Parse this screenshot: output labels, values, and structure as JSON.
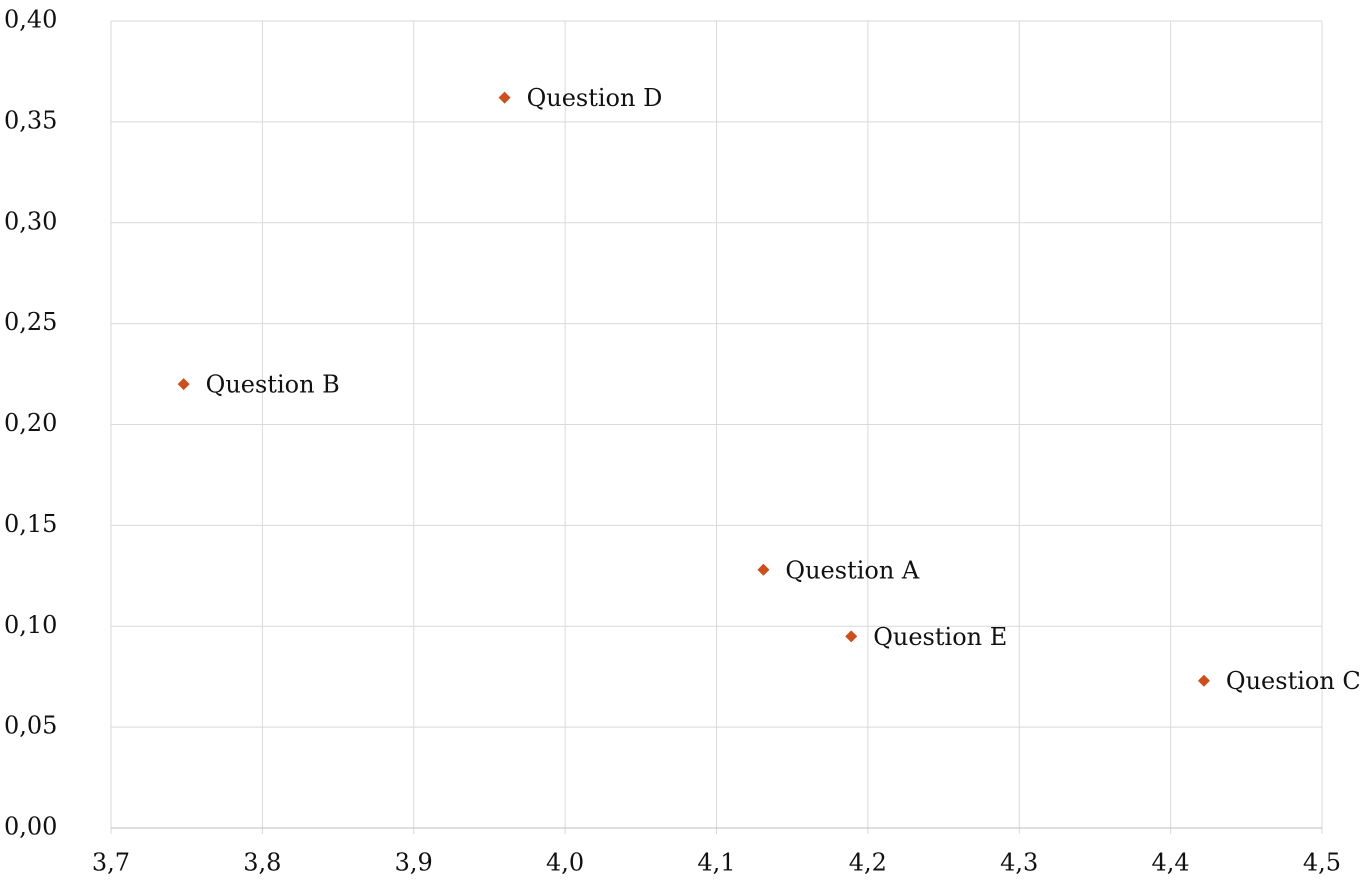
{
  "chart_data": {
    "type": "scatter",
    "x": [
      4.131,
      3.748,
      4.422,
      3.96,
      4.189
    ],
    "values": [
      0.128,
      0.22,
      0.073,
      0.362,
      0.095
    ],
    "labels": [
      "Question A",
      "Question B",
      "Question C",
      "Question D",
      "Question E"
    ],
    "color": "#cc4f1e",
    "xlim": [
      3.7,
      4.5
    ],
    "xticks": [
      {
        "value": 3.7,
        "label": "3,7"
      },
      {
        "value": 3.8,
        "label": "3,8"
      },
      {
        "value": 3.9,
        "label": "3,9"
      },
      {
        "value": 4.0,
        "label": "4,0"
      },
      {
        "value": 4.1,
        "label": "4,1"
      },
      {
        "value": 4.2,
        "label": "4,2"
      },
      {
        "value": 4.3,
        "label": "4,3"
      },
      {
        "value": 4.4,
        "label": "4,4"
      },
      {
        "value": 4.5,
        "label": "4,5"
      }
    ],
    "ylim": [
      0,
      0.4
    ],
    "yticks": [
      {
        "value": 0,
        "label": "0,00"
      },
      {
        "value": 0.05,
        "label": "0,05"
      },
      {
        "value": 0.1,
        "label": "0,10"
      },
      {
        "value": 0.15,
        "label": "0,15"
      },
      {
        "value": 0.2,
        "label": "0,20"
      },
      {
        "value": 0.25,
        "label": "0,25"
      },
      {
        "value": 0.3,
        "label": "0,30"
      },
      {
        "value": 0.35,
        "label": "0,35"
      },
      {
        "value": 0.4,
        "label": "0,40"
      }
    ],
    "grid": true
  }
}
